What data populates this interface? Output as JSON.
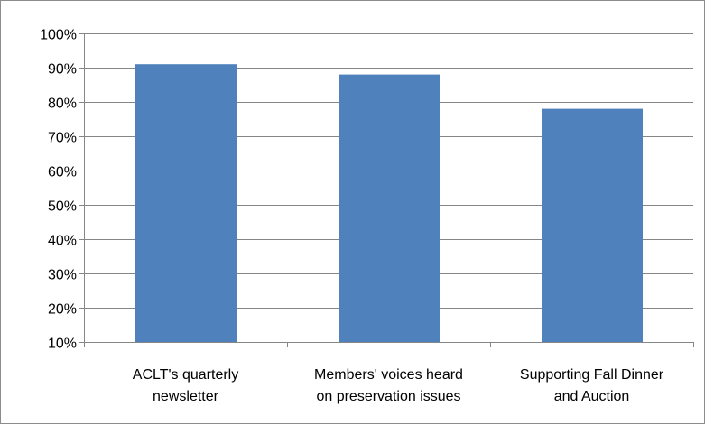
{
  "chart_data": {
    "type": "bar",
    "title": "",
    "xlabel": "",
    "ylabel": "",
    "categories": [
      [
        "ACLT's quarterly",
        "newsletter"
      ],
      [
        "Members' voices heard",
        "on preservation issues"
      ],
      [
        "Supporting Fall Dinner",
        "and Auction"
      ]
    ],
    "values": [
      0.91,
      0.88,
      0.78
    ],
    "ylim": [
      0.1,
      1.0
    ],
    "ytick_values": [
      0.1,
      0.2,
      0.3,
      0.4,
      0.5,
      0.6,
      0.7,
      0.8,
      0.9,
      1.0
    ],
    "ytick_labels": [
      "10%",
      "20%",
      "30%",
      "40%",
      "50%",
      "60%",
      "70%",
      "80%",
      "90%",
      "100%"
    ],
    "grid": true,
    "legend": "none",
    "bar_color": "#4F81BD",
    "gridline_color": "#868686",
    "axis_color": "#868686"
  }
}
